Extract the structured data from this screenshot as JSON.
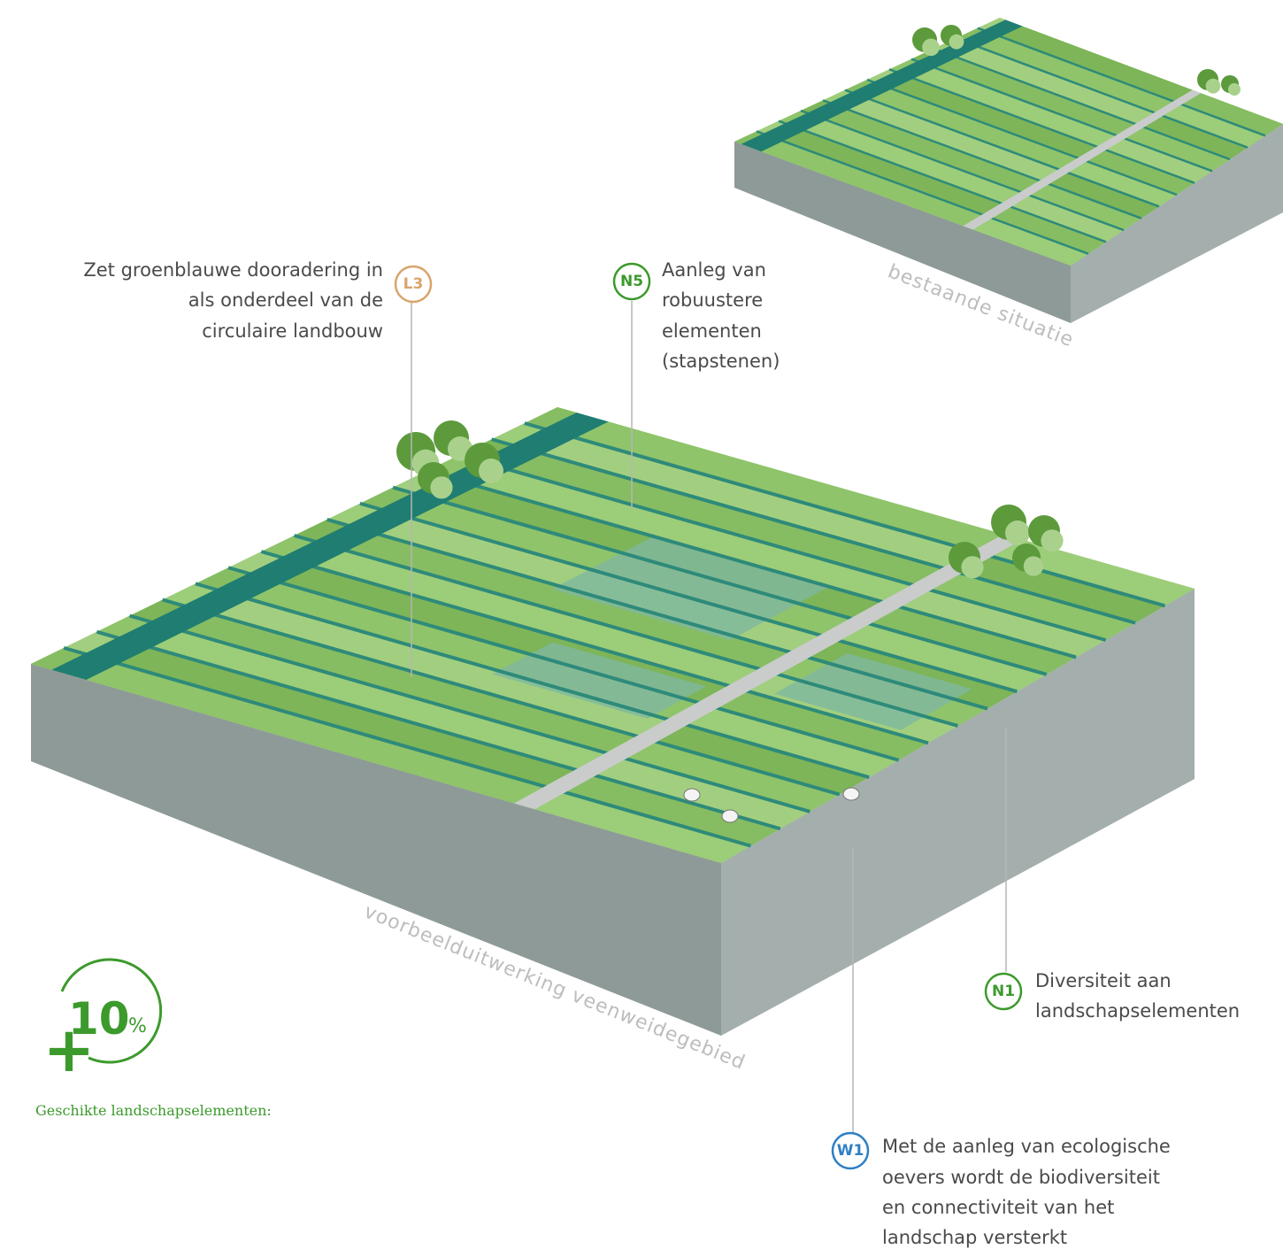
{
  "annotations": [
    {
      "code": "L3",
      "lines": [
        "Zet groenblauwe dooradering in",
        "als onderdeel van de",
        "circulaire landbouw"
      ]
    },
    {
      "code": "N5",
      "lines": [
        "Aanleg van",
        "robuustere",
        "elementen",
        "(stapstenen)"
      ]
    },
    {
      "code": "N1",
      "lines": [
        "Diversiteit aan",
        "landschapselementen"
      ]
    },
    {
      "code": "W1",
      "lines": [
        "Met de aanleg van ecologische",
        "oevers wordt de biodiversiteit",
        "en connectiviteit van het",
        "landschap versterkt"
      ]
    }
  ],
  "captions": {
    "existing": "bestaande situatie",
    "example": "voorbeelduitwerking veenweidegebied"
  },
  "badge": {
    "plus": "+",
    "number": "10",
    "unit": "%"
  },
  "legend_title": "Geschikte landschapselementen:"
}
